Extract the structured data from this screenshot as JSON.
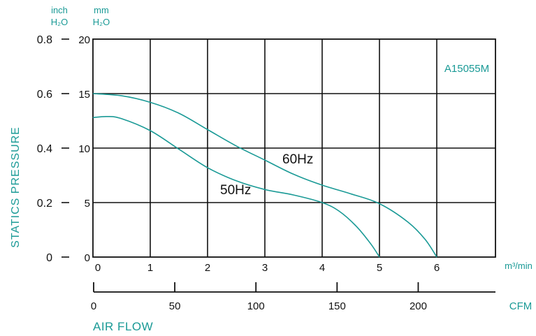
{
  "colors": {
    "accent": "#1a9a96",
    "grid": "#111111",
    "curve": "#1a9a96"
  },
  "units": {
    "inch": {
      "line1": "inch",
      "line2": "H₂O"
    },
    "mm": {
      "line1": "mm",
      "line2": "H₂O"
    },
    "m3min": "m³/min",
    "cfm": "CFM"
  },
  "chart_data": {
    "type": "line",
    "model_label": "A15055M",
    "ylabel": "STATICS PRESSURE",
    "xlabel": "AIR FLOW",
    "x_unit": "m³/min",
    "y_unit": "mm H₂O",
    "xlim": [
      0,
      7
    ],
    "ylim": [
      0,
      20
    ],
    "grid": true,
    "x_ticks": [
      "0",
      "1",
      "2",
      "3",
      "4",
      "5",
      "6"
    ],
    "y_ticks_mm": [
      "0",
      "5",
      "10",
      "15",
      "20"
    ],
    "y_ticks_inch": [
      "0",
      "0.2",
      "0.4",
      "0.6",
      "0.8"
    ],
    "cfm_ticks": [
      "0",
      "50",
      "100",
      "150",
      "200"
    ],
    "cfm_per_m3min": 35.31,
    "series": [
      {
        "name": "60Hz",
        "x": [
          0,
          0.5,
          1,
          1.5,
          2,
          2.5,
          3,
          3.5,
          4,
          4.5,
          5,
          5.5,
          5.8,
          6
        ],
        "y": [
          15.0,
          14.8,
          14.2,
          13.2,
          11.7,
          10.2,
          8.9,
          7.6,
          6.6,
          5.8,
          4.9,
          3.2,
          1.6,
          0
        ]
      },
      {
        "name": "50Hz",
        "x": [
          0,
          0.25,
          0.5,
          1,
          1.5,
          2,
          2.5,
          3,
          3.5,
          4,
          4.3,
          4.6,
          4.85,
          5
        ],
        "y": [
          12.8,
          12.9,
          12.7,
          11.6,
          9.9,
          8.2,
          7.0,
          6.2,
          5.7,
          5.0,
          4.2,
          2.8,
          1.2,
          0
        ]
      }
    ]
  }
}
